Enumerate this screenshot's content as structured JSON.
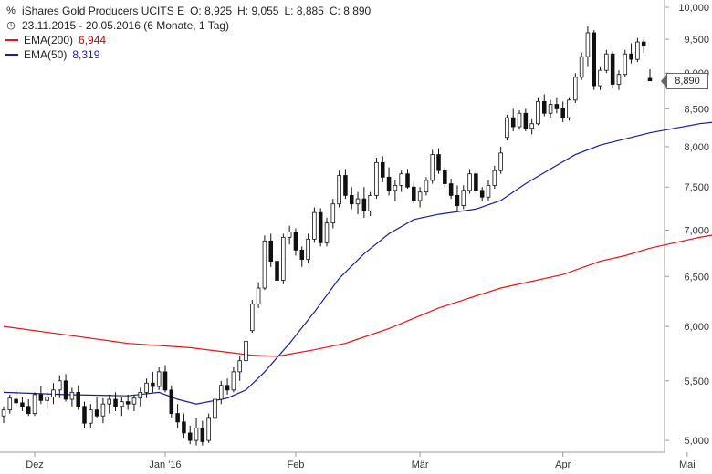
{
  "legend": {
    "instrument_line": {
      "name": "iShares Gold Producers UCITS E",
      "open": "O: 8,925",
      "high": "H: 9,055",
      "low": "L: 8,885",
      "close": "C: 8,890"
    },
    "period_line": "23.11.2015 - 20.05.2016 (6 Monate, 1 Tag)",
    "ema200": {
      "label": "EMA(200)",
      "value": "6,944",
      "color": "#e0151b"
    },
    "ema50": {
      "label": "EMA(50)",
      "value": "8,319",
      "color": "#1b1f8f"
    }
  },
  "icons": {
    "instrument": "percent-icon",
    "period": "clock-icon"
  },
  "price_tag": "8,890",
  "chart_data": {
    "type": "candlestick",
    "title": "iShares Gold Producers UCITS E",
    "y_scale": "log",
    "ylim": [
      4.95,
      10.0
    ],
    "y_ticks": [
      5.0,
      5.5,
      6.0,
      6.5,
      7.0,
      7.5,
      8.0,
      8.5,
      9.0,
      9.5,
      10.0
    ],
    "y_tick_labels": [
      "5,000",
      "5,500",
      "6,000",
      "6,500",
      "7,000",
      "7,500",
      "8,000",
      "8,500",
      "9,000",
      "9,500",
      "10,000"
    ],
    "x_ticks": [
      {
        "label": "Dez",
        "index": 5
      },
      {
        "label": "Jan '16",
        "index": 26
      },
      {
        "label": "Feb",
        "index": 47
      },
      {
        "label": "Mär",
        "index": 67
      },
      {
        "label": "Apr",
        "index": 90
      },
      {
        "label": "Mai",
        "index": 110
      }
    ],
    "candles": [
      [
        5.2,
        5.28,
        5.14,
        5.25
      ],
      [
        5.25,
        5.38,
        5.22,
        5.35
      ],
      [
        5.34,
        5.42,
        5.28,
        5.31
      ],
      [
        5.31,
        5.36,
        5.24,
        5.28
      ],
      [
        5.28,
        5.34,
        5.2,
        5.22
      ],
      [
        5.22,
        5.4,
        5.2,
        5.38
      ],
      [
        5.38,
        5.45,
        5.3,
        5.33
      ],
      [
        5.33,
        5.4,
        5.26,
        5.36
      ],
      [
        5.36,
        5.48,
        5.3,
        5.42
      ],
      [
        5.42,
        5.55,
        5.35,
        5.5
      ],
      [
        5.5,
        5.56,
        5.32,
        5.34
      ],
      [
        5.34,
        5.44,
        5.28,
        5.4
      ],
      [
        5.4,
        5.46,
        5.25,
        5.28
      ],
      [
        5.28,
        5.32,
        5.1,
        5.14
      ],
      [
        5.14,
        5.3,
        5.1,
        5.25
      ],
      [
        5.25,
        5.36,
        5.18,
        5.2
      ],
      [
        5.2,
        5.35,
        5.14,
        5.3
      ],
      [
        5.3,
        5.38,
        5.22,
        5.34
      ],
      [
        5.34,
        5.4,
        5.24,
        5.28
      ],
      [
        5.28,
        5.36,
        5.2,
        5.32
      ],
      [
        5.32,
        5.38,
        5.25,
        5.3
      ],
      [
        5.3,
        5.38,
        5.24,
        5.35
      ],
      [
        5.35,
        5.44,
        5.28,
        5.4
      ],
      [
        5.4,
        5.52,
        5.35,
        5.48
      ],
      [
        5.48,
        5.58,
        5.4,
        5.45
      ],
      [
        5.45,
        5.62,
        5.42,
        5.58
      ],
      [
        5.58,
        5.64,
        5.4,
        5.42
      ],
      [
        5.42,
        5.46,
        5.18,
        5.22
      ],
      [
        5.22,
        5.3,
        5.1,
        5.15
      ],
      [
        5.15,
        5.22,
        5.02,
        5.06
      ],
      [
        5.06,
        5.12,
        4.97,
        5.0
      ],
      [
        5.0,
        5.18,
        4.96,
        5.1
      ],
      [
        5.1,
        5.16,
        4.96,
        4.99
      ],
      [
        5.0,
        5.22,
        4.98,
        5.18
      ],
      [
        5.18,
        5.36,
        5.16,
        5.34
      ],
      [
        5.34,
        5.5,
        5.3,
        5.46
      ],
      [
        5.46,
        5.52,
        5.38,
        5.42
      ],
      [
        5.42,
        5.62,
        5.4,
        5.58
      ],
      [
        5.58,
        5.72,
        5.5,
        5.68
      ],
      [
        5.68,
        5.9,
        5.65,
        5.86
      ],
      [
        5.96,
        6.26,
        5.94,
        6.22
      ],
      [
        6.22,
        6.44,
        6.18,
        6.38
      ],
      [
        6.38,
        6.94,
        6.36,
        6.88
      ],
      [
        6.88,
        6.96,
        6.6,
        6.66
      ],
      [
        6.66,
        6.72,
        6.38,
        6.46
      ],
      [
        6.46,
        6.96,
        6.42,
        6.92
      ],
      [
        6.92,
        7.05,
        6.84,
        6.98
      ],
      [
        6.98,
        7.02,
        6.72,
        6.78
      ],
      [
        6.78,
        6.82,
        6.6,
        6.68
      ],
      [
        6.68,
        6.96,
        6.64,
        6.9
      ],
      [
        6.9,
        7.26,
        6.86,
        7.2
      ],
      [
        7.2,
        7.25,
        6.82,
        6.86
      ],
      [
        6.86,
        7.14,
        6.82,
        7.08
      ],
      [
        7.08,
        7.36,
        7.02,
        7.3
      ],
      [
        7.3,
        7.7,
        7.26,
        7.64
      ],
      [
        7.64,
        7.72,
        7.36,
        7.4
      ],
      [
        7.4,
        7.5,
        7.24,
        7.3
      ],
      [
        7.3,
        7.44,
        7.18,
        7.36
      ],
      [
        7.36,
        7.5,
        7.14,
        7.22
      ],
      [
        7.22,
        7.44,
        7.16,
        7.4
      ],
      [
        7.4,
        7.86,
        7.36,
        7.8
      ],
      [
        7.8,
        7.88,
        7.56,
        7.62
      ],
      [
        7.62,
        7.74,
        7.4,
        7.46
      ],
      [
        7.46,
        7.58,
        7.34,
        7.52
      ],
      [
        7.52,
        7.7,
        7.44,
        7.66
      ],
      [
        7.66,
        7.72,
        7.48,
        7.5
      ],
      [
        7.5,
        7.56,
        7.3,
        7.34
      ],
      [
        7.34,
        7.5,
        7.26,
        7.44
      ],
      [
        7.44,
        7.62,
        7.4,
        7.58
      ],
      [
        7.58,
        7.96,
        7.54,
        7.9
      ],
      [
        7.9,
        7.98,
        7.66,
        7.7
      ],
      [
        7.7,
        7.74,
        7.5,
        7.54
      ],
      [
        7.54,
        7.6,
        7.36,
        7.4
      ],
      [
        7.4,
        7.52,
        7.22,
        7.28
      ],
      [
        7.28,
        7.52,
        7.24,
        7.46
      ],
      [
        7.46,
        7.72,
        7.42,
        7.66
      ],
      [
        7.66,
        7.72,
        7.42,
        7.46
      ],
      [
        7.46,
        7.5,
        7.34,
        7.38
      ],
      [
        7.38,
        7.58,
        7.34,
        7.52
      ],
      [
        7.52,
        7.76,
        7.48,
        7.7
      ],
      [
        7.7,
        8.0,
        7.66,
        7.92
      ],
      [
        8.12,
        8.42,
        8.08,
        8.38
      ],
      [
        8.38,
        8.5,
        8.2,
        8.26
      ],
      [
        8.26,
        8.48,
        8.22,
        8.44
      ],
      [
        8.44,
        8.5,
        8.2,
        8.24
      ],
      [
        8.24,
        8.36,
        8.16,
        8.3
      ],
      [
        8.3,
        8.66,
        8.28,
        8.6
      ],
      [
        8.6,
        8.7,
        8.4,
        8.44
      ],
      [
        8.44,
        8.62,
        8.38,
        8.56
      ],
      [
        8.56,
        8.66,
        8.44,
        8.5
      ],
      [
        8.5,
        8.6,
        8.32,
        8.38
      ],
      [
        8.38,
        8.66,
        8.34,
        8.62
      ],
      [
        8.62,
        9.0,
        8.58,
        8.94
      ],
      [
        8.94,
        9.3,
        8.9,
        9.24
      ],
      [
        9.24,
        9.7,
        9.1,
        9.6
      ],
      [
        9.6,
        9.64,
        8.76,
        8.82
      ],
      [
        8.82,
        9.1,
        8.76,
        9.04
      ],
      [
        9.04,
        9.34,
        9.0,
        9.28
      ],
      [
        9.28,
        9.32,
        8.78,
        8.84
      ],
      [
        8.84,
        9.04,
        8.76,
        8.98
      ],
      [
        8.98,
        9.34,
        8.94,
        9.28
      ],
      [
        9.28,
        9.44,
        9.14,
        9.2
      ],
      [
        9.2,
        9.52,
        9.16,
        9.46
      ],
      [
        9.46,
        9.5,
        9.3,
        9.4
      ],
      [
        8.925,
        9.055,
        8.885,
        8.89
      ]
    ],
    "ema200": [
      [
        0,
        6.0
      ],
      [
        10,
        5.92
      ],
      [
        20,
        5.84
      ],
      [
        30,
        5.8
      ],
      [
        40,
        5.73
      ],
      [
        44,
        5.72
      ],
      [
        50,
        5.78
      ],
      [
        55,
        5.84
      ],
      [
        62,
        5.98
      ],
      [
        70,
        6.18
      ],
      [
        80,
        6.38
      ],
      [
        90,
        6.52
      ],
      [
        96,
        6.66
      ],
      [
        100,
        6.72
      ],
      [
        104,
        6.8
      ],
      [
        108,
        6.86
      ],
      [
        112,
        6.92
      ],
      [
        114,
        6.944
      ]
    ],
    "ema50": [
      [
        0,
        5.4
      ],
      [
        10,
        5.38
      ],
      [
        20,
        5.37
      ],
      [
        25,
        5.4
      ],
      [
        28,
        5.34
      ],
      [
        31,
        5.3
      ],
      [
        36,
        5.35
      ],
      [
        39,
        5.42
      ],
      [
        42,
        5.58
      ],
      [
        46,
        5.84
      ],
      [
        50,
        6.14
      ],
      [
        54,
        6.48
      ],
      [
        58,
        6.74
      ],
      [
        62,
        6.96
      ],
      [
        66,
        7.12
      ],
      [
        70,
        7.18
      ],
      [
        76,
        7.24
      ],
      [
        80,
        7.34
      ],
      [
        84,
        7.54
      ],
      [
        88,
        7.72
      ],
      [
        92,
        7.9
      ],
      [
        96,
        8.02
      ],
      [
        100,
        8.1
      ],
      [
        104,
        8.18
      ],
      [
        108,
        8.24
      ],
      [
        112,
        8.3
      ],
      [
        114,
        8.319
      ]
    ],
    "last_close": 8.89,
    "grid": false
  }
}
